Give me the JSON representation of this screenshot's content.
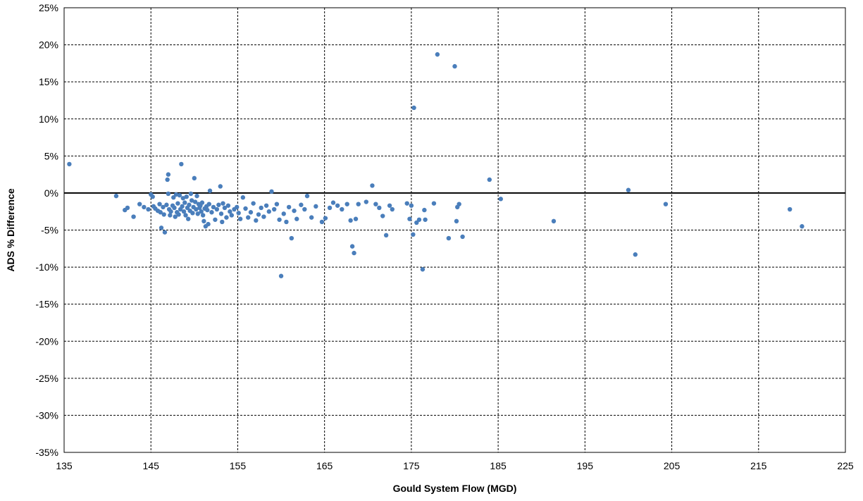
{
  "chart_data": {
    "type": "scatter",
    "xlabel": "Gould System Flow (MGD)",
    "ylabel": "ADS % Difference",
    "xlim": [
      135,
      225
    ],
    "ylim": [
      -35,
      25
    ],
    "x_ticks": [
      135,
      145,
      155,
      165,
      175,
      185,
      195,
      205,
      215,
      225
    ],
    "y_ticks": [
      25,
      20,
      15,
      10,
      5,
      0,
      -5,
      -10,
      -15,
      -20,
      -25,
      -30,
      -35
    ],
    "x_tick_labels": [
      "135",
      "145",
      "155",
      "165",
      "175",
      "185",
      "195",
      "205",
      "215",
      "225"
    ],
    "y_tick_labels": [
      "25%",
      "20%",
      "15%",
      "10%",
      "5%",
      "0%",
      "-5%",
      "-10%",
      "-15%",
      "-20%",
      "-25%",
      "-30%",
      "-35%"
    ],
    "grid": true,
    "marker_color": "#4a7ebb",
    "series": [
      {
        "points": [
          [
            135.6,
            3.9
          ],
          [
            141.0,
            -0.4
          ],
          [
            142.0,
            -2.3
          ],
          [
            142.3,
            -2.0
          ],
          [
            143.0,
            -3.2
          ],
          [
            143.7,
            -1.5
          ],
          [
            144.2,
            -1.9
          ],
          [
            144.7,
            -2.2
          ],
          [
            145.0,
            -0.2
          ],
          [
            145.2,
            -0.5
          ],
          [
            145.3,
            -1.8
          ],
          [
            145.5,
            -2.1
          ],
          [
            145.8,
            -2.4
          ],
          [
            146.0,
            -1.5
          ],
          [
            146.1,
            -2.6
          ],
          [
            146.2,
            -4.7
          ],
          [
            146.4,
            -1.9
          ],
          [
            146.5,
            -2.9
          ],
          [
            146.6,
            -5.3
          ],
          [
            146.8,
            -1.6
          ],
          [
            146.9,
            1.8
          ],
          [
            147.0,
            2.5
          ],
          [
            147.0,
            -0.1
          ],
          [
            147.1,
            -2.2
          ],
          [
            147.2,
            -3.0
          ],
          [
            147.3,
            -2.5
          ],
          [
            147.5,
            -1.7
          ],
          [
            147.6,
            -0.6
          ],
          [
            147.7,
            -2.0
          ],
          [
            147.8,
            -3.2
          ],
          [
            147.9,
            -0.2
          ],
          [
            148.0,
            -2.6
          ],
          [
            148.1,
            -1.4
          ],
          [
            148.2,
            -2.9
          ],
          [
            148.3,
            -0.3
          ],
          [
            148.4,
            -2.2
          ],
          [
            148.5,
            3.9
          ],
          [
            148.6,
            -1.8
          ],
          [
            148.7,
            -0.7
          ],
          [
            148.8,
            -2.5
          ],
          [
            148.9,
            -1.3
          ],
          [
            149.0,
            -3.0
          ],
          [
            149.1,
            -0.5
          ],
          [
            149.2,
            -2.0
          ],
          [
            149.3,
            -3.5
          ],
          [
            149.4,
            -1.6
          ],
          [
            149.5,
            -2.4
          ],
          [
            149.6,
            -0.1
          ],
          [
            149.7,
            -1.0
          ],
          [
            149.8,
            -2.7
          ],
          [
            149.9,
            -1.9
          ],
          [
            150.0,
            2.0
          ],
          [
            150.1,
            -1.2
          ],
          [
            150.2,
            -2.2
          ],
          [
            150.3,
            -0.4
          ],
          [
            150.4,
            -2.8
          ],
          [
            150.5,
            -1.5
          ],
          [
            150.6,
            -2.0
          ],
          [
            150.7,
            -1.7
          ],
          [
            150.8,
            -2.5
          ],
          [
            150.9,
            -1.3
          ],
          [
            151.0,
            -3.0
          ],
          [
            151.1,
            -3.8
          ],
          [
            151.2,
            -2.1
          ],
          [
            151.3,
            -4.5
          ],
          [
            151.4,
            -1.8
          ],
          [
            151.5,
            -2.3
          ],
          [
            151.6,
            -4.2
          ],
          [
            151.7,
            -1.5
          ],
          [
            151.8,
            0.3
          ],
          [
            152.0,
            -2.6
          ],
          [
            152.2,
            -1.9
          ],
          [
            152.4,
            -3.6
          ],
          [
            152.6,
            -2.2
          ],
          [
            152.8,
            -1.6
          ],
          [
            153.0,
            0.9
          ],
          [
            153.1,
            -2.8
          ],
          [
            153.2,
            -3.9
          ],
          [
            153.3,
            -1.4
          ],
          [
            153.5,
            -2.0
          ],
          [
            153.7,
            -3.3
          ],
          [
            153.9,
            -1.7
          ],
          [
            154.1,
            -2.5
          ],
          [
            154.3,
            -3.0
          ],
          [
            154.6,
            -2.2
          ],
          [
            154.9,
            -1.9
          ],
          [
            155.1,
            -2.7
          ],
          [
            155.3,
            -3.5
          ],
          [
            155.6,
            -0.6
          ],
          [
            155.9,
            -2.1
          ],
          [
            156.2,
            -3.3
          ],
          [
            156.5,
            -2.6
          ],
          [
            156.8,
            -1.4
          ],
          [
            157.1,
            -3.7
          ],
          [
            157.4,
            -2.9
          ],
          [
            157.7,
            -2.0
          ],
          [
            158.0,
            -3.2
          ],
          [
            158.3,
            -1.7
          ],
          [
            158.6,
            -2.5
          ],
          [
            158.9,
            0.2
          ],
          [
            159.2,
            -2.2
          ],
          [
            159.5,
            -1.5
          ],
          [
            159.8,
            -3.6
          ],
          [
            160.0,
            -11.2
          ],
          [
            160.3,
            -2.8
          ],
          [
            160.6,
            -3.9
          ],
          [
            160.9,
            -1.9
          ],
          [
            161.2,
            -6.1
          ],
          [
            161.5,
            -2.4
          ],
          [
            161.8,
            -3.5
          ],
          [
            162.3,
            -1.6
          ],
          [
            162.7,
            -2.2
          ],
          [
            163.0,
            -0.4
          ],
          [
            163.5,
            -3.3
          ],
          [
            164.0,
            -1.8
          ],
          [
            164.7,
            -3.9
          ],
          [
            165.1,
            -3.4
          ],
          [
            165.6,
            -2.0
          ],
          [
            166.0,
            -1.3
          ],
          [
            166.5,
            -1.7
          ],
          [
            167.0,
            -2.2
          ],
          [
            167.6,
            -1.5
          ],
          [
            168.0,
            -3.7
          ],
          [
            168.2,
            -7.2
          ],
          [
            168.4,
            -8.1
          ],
          [
            168.6,
            -3.5
          ],
          [
            168.9,
            -1.5
          ],
          [
            169.8,
            -1.2
          ],
          [
            170.5,
            1.0
          ],
          [
            170.9,
            -1.5
          ],
          [
            171.3,
            -2.0
          ],
          [
            171.7,
            -3.1
          ],
          [
            172.1,
            -5.7
          ],
          [
            172.5,
            -1.7
          ],
          [
            172.8,
            -2.2
          ],
          [
            174.5,
            -1.4
          ],
          [
            174.8,
            -3.5
          ],
          [
            175.0,
            -1.7
          ],
          [
            175.2,
            -5.6
          ],
          [
            175.3,
            11.5
          ],
          [
            175.6,
            -4.0
          ],
          [
            175.9,
            -3.6
          ],
          [
            176.3,
            -10.3
          ],
          [
            176.6,
            -3.6
          ],
          [
            176.5,
            -2.3
          ],
          [
            177.6,
            -1.4
          ],
          [
            178.0,
            18.7
          ],
          [
            179.3,
            -6.1
          ],
          [
            180.0,
            17.1
          ],
          [
            180.2,
            -3.8
          ],
          [
            180.3,
            -1.9
          ],
          [
            180.5,
            -1.5
          ],
          [
            180.9,
            -5.9
          ],
          [
            184.0,
            1.8
          ],
          [
            185.3,
            -0.8
          ],
          [
            191.4,
            -3.8
          ],
          [
            200.0,
            0.4
          ],
          [
            200.8,
            -8.3
          ],
          [
            204.3,
            -1.5
          ],
          [
            218.6,
            -2.2
          ],
          [
            220.0,
            -4.5
          ]
        ]
      }
    ]
  }
}
